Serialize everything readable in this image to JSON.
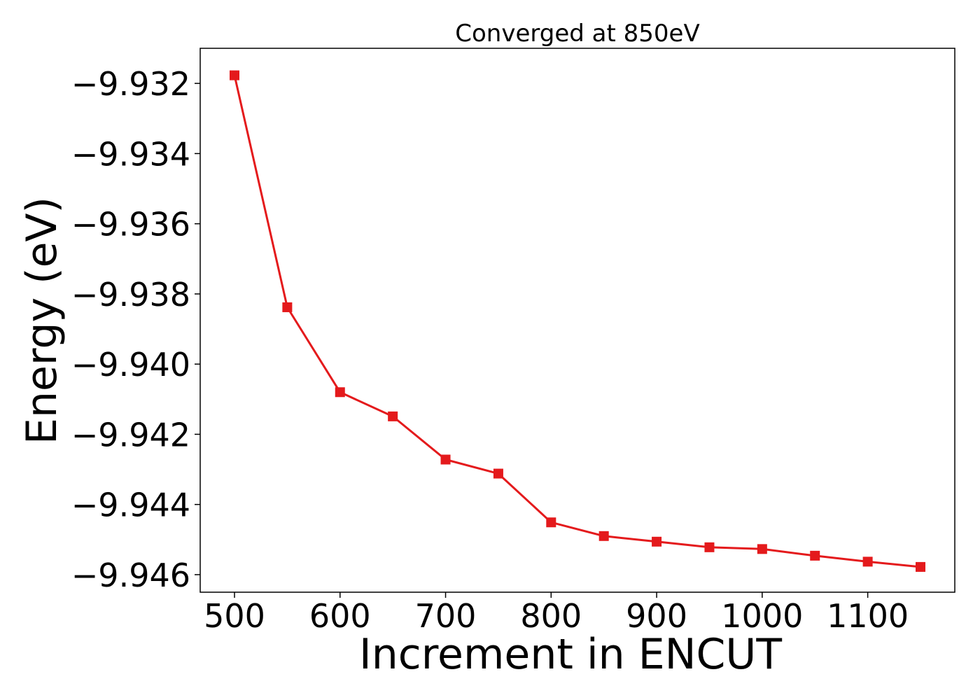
{
  "chart_data": {
    "type": "line",
    "title": "Converged at 850eV",
    "xlabel": "Increment in ENCUT",
    "ylabel": "Energy (eV)",
    "xlim": [
      467.5,
      1182.5
    ],
    "ylim": [
      -9.9465,
      -9.931
    ],
    "xticks": [
      500,
      600,
      700,
      800,
      900,
      1000,
      1100
    ],
    "xtick_labels": [
      "500",
      "600",
      "700",
      "800",
      "900",
      "1000",
      "1100"
    ],
    "yticks": [
      -9.932,
      -9.934,
      -9.936,
      -9.938,
      -9.94,
      -9.942,
      -9.944,
      -9.946
    ],
    "ytick_labels": [
      "−9.932",
      "−9.934",
      "−9.936",
      "−9.938",
      "−9.940",
      "−9.942",
      "−9.944",
      "−9.946"
    ],
    "grid": false,
    "marker": "square",
    "color": "#e41a1c",
    "series": [
      {
        "x": [
          500,
          550,
          600,
          650,
          700,
          750,
          800,
          850,
          900,
          950,
          1000,
          1050,
          1100,
          1150
        ],
        "y": [
          -9.93177,
          -9.93838,
          -9.9408,
          -9.94149,
          -9.94272,
          -9.94312,
          -9.94451,
          -9.9449,
          -9.94506,
          -9.94522,
          -9.94527,
          -9.94546,
          -9.94563,
          -9.94578
        ]
      }
    ]
  }
}
